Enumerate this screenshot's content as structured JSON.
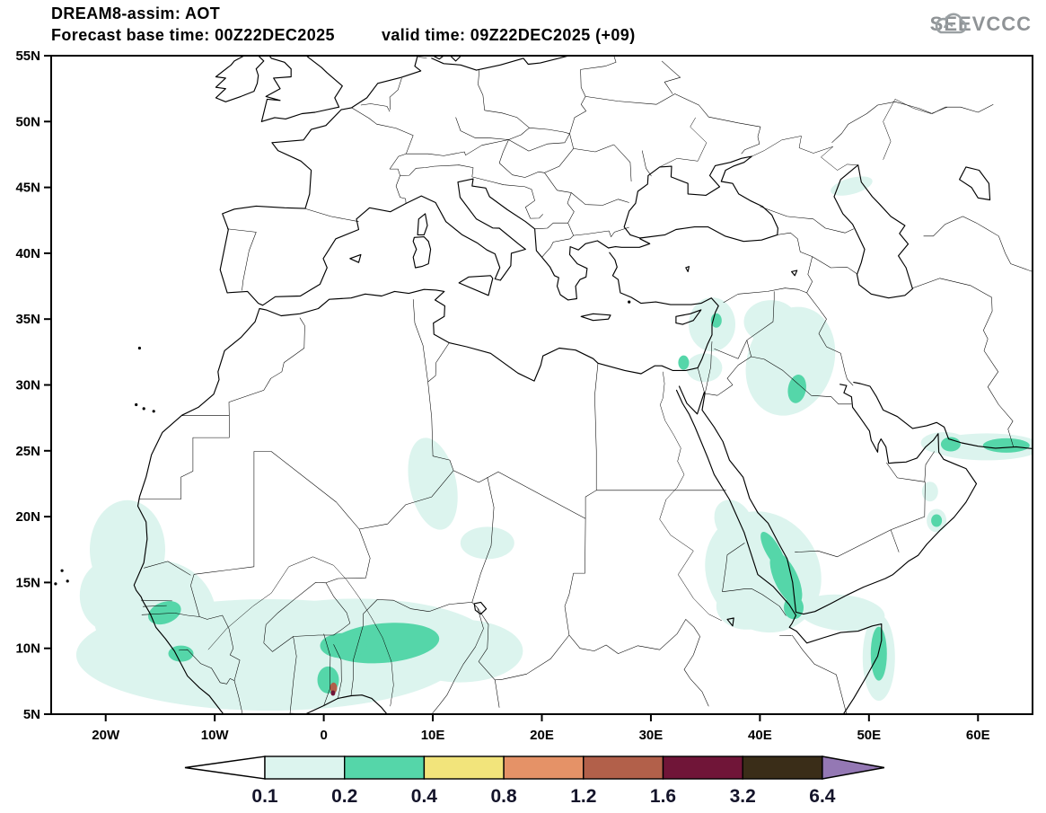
{
  "header": {
    "title": "DREAM8-assim: AOT",
    "base_time": "Forecast base time: 00Z22DEC2025",
    "valid_time": "valid time: 09Z22DEC2025 (+09)"
  },
  "branding": {
    "logo_text": "SEEVCCC"
  },
  "chart_data": {
    "type": "map",
    "title": "DREAM8-assim: AOT",
    "model": "DREAM8-assim",
    "variable": "AOT",
    "forecast_base_time": "00Z22DEC2025",
    "valid_time": "09Z22DEC2025",
    "forecast_hour": "+09",
    "x_axis": {
      "ticks": [
        "20W",
        "10W",
        "0",
        "10E",
        "20E",
        "30E",
        "40E",
        "50E",
        "60E"
      ],
      "lon_values": [
        -20,
        -10,
        0,
        10,
        20,
        30,
        40,
        50,
        60
      ],
      "range_lon": [
        -25,
        65
      ]
    },
    "y_axis": {
      "ticks": [
        "55N",
        "50N",
        "45N",
        "40N",
        "35N",
        "30N",
        "25N",
        "20N",
        "15N",
        "10N",
        "5N"
      ],
      "lat_values": [
        55,
        50,
        45,
        40,
        35,
        30,
        25,
        20,
        15,
        10,
        5
      ],
      "range_lat": [
        5,
        55
      ]
    },
    "colorbar": {
      "tick_labels": [
        "0.1",
        "0.2",
        "0.4",
        "0.8",
        "1.2",
        "1.6",
        "3.2",
        "6.4"
      ],
      "levels": [
        0.1,
        0.2,
        0.4,
        0.8,
        1.2,
        1.6,
        3.2,
        6.4
      ],
      "segment_colors": [
        "#dcf4ee",
        "#55d6a9",
        "#f2e47b",
        "#e59267",
        "#b2604a",
        "#701538",
        "#3a2d18"
      ],
      "under_color": "#ffffff",
      "over_color": "#9478b4"
    },
    "shaded_regions": [
      {
        "area": "West Africa / Sahel belt (17W-16E, 5N-14N)",
        "aot": "0.1-0.4"
      },
      {
        "area": "Atlantic coast off Senegal-Mauritania",
        "aot": "0.1-0.2"
      },
      {
        "area": "Southern Algeria (~10E, 20-25N)",
        "aot": "0.1-0.2"
      },
      {
        "area": "Levant / Syria-Israel-Jordan",
        "aot": "0.1-0.2"
      },
      {
        "area": "Iraq and Iraq-Saudi border",
        "aot": "0.1-0.4"
      },
      {
        "area": "Southern Red Sea / Sudan-Eritrea-Yemen",
        "aot": "0.1-0.4"
      },
      {
        "area": "Gulf of Aden / northern Somalia",
        "aot": "0.1-0.2"
      },
      {
        "area": "Somali east coast (~51E, 7-11N)",
        "aot": "0.2-0.4"
      },
      {
        "area": "Southern Oman coast",
        "aot": "0.1-0.4"
      },
      {
        "area": "Gulf of Oman / Makran coast (56-65E, ~25N)",
        "aot": "0.1-0.4"
      },
      {
        "area": "NW Caspian lowlands",
        "aot": "0.1-0.2"
      },
      {
        "area": "Small hotspot near Togo/Benin coast",
        "aot": ">=1.2"
      }
    ]
  }
}
